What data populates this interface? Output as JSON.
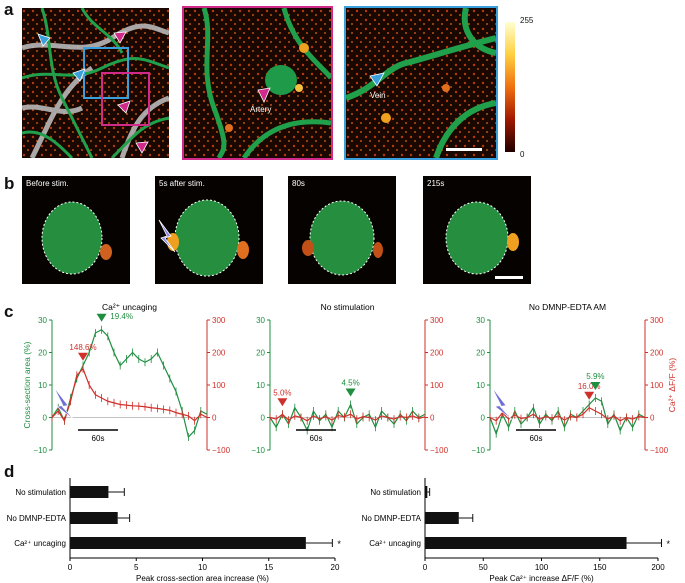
{
  "panel_letters": {
    "a": "a",
    "b": "b",
    "c": "c",
    "d": "d"
  },
  "panel_a": {
    "artery_label": "Artery",
    "vein_label": "Vein",
    "colorbar_max": "255",
    "colorbar_min": "0",
    "colors": {
      "artery_frame": "#d02a8a",
      "vein_frame": "#3aa0dc",
      "vessel": "#22a050"
    }
  },
  "panel_b": {
    "frames": [
      {
        "label": "Before stim."
      },
      {
        "label": "5s after stim."
      },
      {
        "label": "80s"
      },
      {
        "label": "215s"
      }
    ]
  },
  "panel_c": {
    "left_axis_label": "Cross-section area (%)",
    "right_axis_label": "Ca²⁺ ΔF/F (%)",
    "left_ticks": [
      "30",
      "20",
      "10",
      "0",
      "−10"
    ],
    "right_ticks": [
      "300",
      "200",
      "100",
      "0",
      "−100"
    ],
    "scale_bar_label": "60s",
    "colors": {
      "area": "#1f8f40",
      "calcium": "#d0302a",
      "stim": "#6f6fd8"
    }
  },
  "panel_d": {
    "categories": [
      "No stimulation",
      "No DMNP-EDTA",
      "Ca²⁺ uncaging"
    ],
    "left_xlabel": "Peak cross-section area increase (%)",
    "right_xlabel": "Peak Ca²⁺ increase ΔF/F (%)",
    "left_ticks": [
      "0",
      "5",
      "10",
      "15",
      "20"
    ],
    "right_ticks": [
      "0",
      "50",
      "100",
      "150",
      "200"
    ],
    "star": "*"
  },
  "chart_data": [
    {
      "type": "line",
      "title": "Ca²⁺ uncaging",
      "ylabel": "Cross-section area (%)",
      "y2label": "Ca²⁺ ΔF/F (%)",
      "ylim": [
        -10,
        30
      ],
      "y2lim": [
        -100,
        300
      ],
      "x": [
        0,
        1,
        2,
        3,
        4,
        5,
        6,
        7,
        8,
        9,
        10,
        11,
        12,
        13,
        14,
        15,
        16,
        17,
        18,
        19,
        20,
        21,
        22,
        23,
        24,
        25
      ],
      "series": [
        {
          "axis": "left",
          "values": [
            0,
            3,
            -1,
            6,
            12,
            16,
            20,
            26,
            27,
            25,
            20,
            16,
            18,
            20,
            18,
            17,
            18,
            20,
            16,
            12,
            8,
            2,
            -6,
            -4,
            2,
            1
          ]
        },
        {
          "axis": "right",
          "values": [
            0,
            20,
            -10,
            50,
            130,
            150,
            100,
            70,
            60,
            50,
            45,
            40,
            38,
            36,
            35,
            33,
            30,
            28,
            25,
            22,
            15,
            10,
            5,
            -10,
            10,
            0
          ]
        }
      ],
      "annotations": [
        "148.6%",
        "19.4%"
      ]
    },
    {
      "type": "line",
      "title": "No stimulation",
      "ylabel": "Cross-section area (%)",
      "y2label": "Ca²⁺ ΔF/F (%)",
      "ylim": [
        -10,
        30
      ],
      "y2lim": [
        -100,
        300
      ],
      "x": [
        0,
        1,
        2,
        3,
        4,
        5,
        6,
        7,
        8,
        9,
        10,
        11,
        12,
        13,
        14,
        15,
        16,
        17,
        18,
        19,
        20,
        21,
        22,
        23,
        24,
        25
      ],
      "series": [
        {
          "axis": "left",
          "values": [
            0,
            -3,
            1,
            -2,
            3,
            0,
            -4,
            2,
            -1,
            1,
            -3,
            2,
            0,
            4,
            -2,
            0,
            1,
            -3,
            2,
            0,
            -2,
            1,
            -1,
            2,
            0,
            1
          ]
        },
        {
          "axis": "right",
          "values": [
            0,
            -5,
            10,
            -8,
            5,
            0,
            -10,
            5,
            -5,
            3,
            -8,
            6,
            2,
            10,
            -5,
            3,
            0,
            -8,
            5,
            0,
            -5,
            3,
            0,
            5,
            -3,
            2
          ]
        }
      ],
      "annotations": [
        "5.0%",
        "4.5%"
      ]
    },
    {
      "type": "line",
      "title": "No DMNP-EDTA AM",
      "ylabel": "Cross-section area (%)",
      "y2label": "Ca²⁺ ΔF/F (%)",
      "ylim": [
        -10,
        30
      ],
      "y2lim": [
        -100,
        300
      ],
      "x": [
        0,
        1,
        2,
        3,
        4,
        5,
        6,
        7,
        8,
        9,
        10,
        11,
        12,
        13,
        14,
        15,
        16,
        17,
        18,
        19,
        20,
        21,
        22,
        23,
        24,
        25
      ],
      "series": [
        {
          "axis": "left",
          "values": [
            0,
            -5,
            1,
            -3,
            2,
            -2,
            0,
            3,
            -2,
            1,
            -1,
            2,
            -3,
            1,
            0,
            2,
            4,
            6,
            5,
            -2,
            1,
            -4,
            0,
            -3,
            1,
            0
          ]
        },
        {
          "axis": "right",
          "values": [
            0,
            -10,
            15,
            -5,
            8,
            -3,
            0,
            10,
            -5,
            3,
            -2,
            5,
            -8,
            3,
            0,
            10,
            30,
            20,
            10,
            -5,
            5,
            -10,
            0,
            -5,
            3,
            0
          ]
        }
      ],
      "annotations": [
        "16.0%",
        "5.9%"
      ]
    },
    {
      "type": "bar",
      "categories": [
        "No stimulation",
        "No DMNP-EDTA",
        "Ca²⁺ uncaging"
      ],
      "values": [
        2.9,
        3.6,
        17.8
      ],
      "errors": [
        1.2,
        0.9,
        2.0
      ],
      "xlabel": "Peak cross-section area increase (%)",
      "xlim": [
        0,
        20
      ]
    },
    {
      "type": "bar",
      "categories": [
        "No stimulation",
        "No DMNP-EDTA",
        "Ca²⁺ uncaging"
      ],
      "values": [
        2,
        29,
        173
      ],
      "errors": [
        2,
        12,
        30
      ],
      "xlabel": "Peak Ca²⁺ increase ΔF/F (%)",
      "xlim": [
        0,
        200
      ]
    }
  ]
}
